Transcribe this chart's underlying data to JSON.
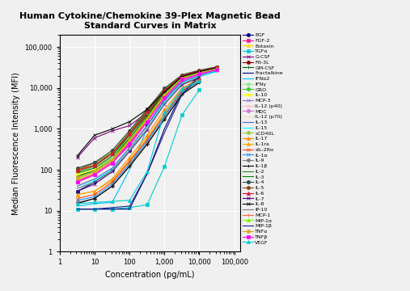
{
  "title": "Human Cytokine/Chemokine 39-Plex Magnetic Bead\nStandard Curves in Matrix",
  "xlabel": "Concentration (pg/mL)",
  "ylabel": "Median Fluorescence Intensity (MFI)",
  "x_conc": [
    3.2,
    10,
    32,
    100,
    320,
    1000,
    3200,
    10000,
    32000
  ],
  "series": [
    {
      "name": "EGF",
      "color": "#00008B",
      "marker": "o",
      "y": [
        30,
        50,
        100,
        300,
        1200,
        5000,
        15000,
        22000,
        28000
      ]
    },
    {
      "name": "FGF-2",
      "color": "#FF1493",
      "marker": "s",
      "y": [
        50,
        80,
        150,
        400,
        1500,
        6000,
        18000,
        25000,
        30000
      ]
    },
    {
      "name": "Eotaxin",
      "color": "#FFD700",
      "marker": "^",
      "y": [
        80,
        100,
        200,
        600,
        2000,
        8000,
        20000,
        26000,
        32000
      ]
    },
    {
      "name": "TGFα",
      "color": "#00CED1",
      "marker": "s",
      "y": [
        11,
        11,
        11,
        12,
        14,
        120,
        2200,
        9000,
        null
      ]
    },
    {
      "name": "G-CSF",
      "color": "#800080",
      "marker": "x",
      "y": [
        200,
        600,
        900,
        1200,
        2500,
        7000,
        18000,
        24000,
        30000
      ]
    },
    {
      "name": "Flt-3L",
      "color": "#8B0000",
      "marker": "o",
      "y": [
        100,
        150,
        250,
        700,
        2200,
        7500,
        19000,
        25000,
        31000
      ]
    },
    {
      "name": "GM-CSF",
      "color": "#006400",
      "marker": "+",
      "y": [
        70,
        100,
        200,
        600,
        2000,
        7000,
        18000,
        24000,
        30000
      ]
    },
    {
      "name": "Fractalkine",
      "color": "#000080",
      "marker": "none",
      "y": [
        11,
        11,
        11,
        11,
        80,
        1000,
        8000,
        20000,
        null
      ]
    },
    {
      "name": "IFNα2",
      "color": "#00BFFF",
      "marker": "none",
      "y": [
        13,
        15,
        16,
        100,
        1000,
        5000,
        15000,
        22000,
        null
      ]
    },
    {
      "name": "IFNγ",
      "color": "#90EE90",
      "marker": "o",
      "y": [
        80,
        100,
        200,
        700,
        2500,
        8000,
        19000,
        25000,
        31000
      ]
    },
    {
      "name": "GRO",
      "color": "#32CD32",
      "marker": "o",
      "y": [
        90,
        120,
        250,
        800,
        2800,
        9000,
        20000,
        26000,
        32000
      ]
    },
    {
      "name": "IL-10",
      "color": "#FFFF00",
      "marker": "o",
      "y": [
        75,
        100,
        180,
        550,
        1800,
        7000,
        18000,
        24000,
        30000
      ]
    },
    {
      "name": "MCP-3",
      "color": "#9370DB",
      "marker": "x",
      "y": [
        65,
        90,
        170,
        500,
        1700,
        6500,
        17000,
        23000,
        29000
      ]
    },
    {
      "name": "IL-12 (p40)",
      "color": "#FFB6C1",
      "marker": "x",
      "y": [
        60,
        85,
        160,
        480,
        1600,
        6000,
        16000,
        22000,
        28000
      ]
    },
    {
      "name": "MDC",
      "color": "#DA70D6",
      "marker": "o",
      "y": [
        55,
        80,
        150,
        450,
        1500,
        5500,
        15000,
        21000,
        27000
      ]
    },
    {
      "name": "IL-12 (p70)",
      "color": "#F5DEB3",
      "marker": "+",
      "y": [
        45,
        60,
        110,
        330,
        1100,
        4500,
        13000,
        19000,
        26000
      ]
    },
    {
      "name": "IL-13",
      "color": "#4169E1",
      "marker": "none",
      "y": [
        40,
        60,
        110,
        350,
        1200,
        5000,
        14000,
        20000,
        26000
      ]
    },
    {
      "name": "IL-15",
      "color": "#00FFFF",
      "marker": "none",
      "y": [
        35,
        55,
        100,
        300,
        1000,
        4500,
        13000,
        19000,
        25000
      ]
    },
    {
      "name": "sCD40L",
      "color": "#9ACD32",
      "marker": "o",
      "y": [
        100,
        140,
        280,
        900,
        3000,
        9500,
        21000,
        27000,
        33000
      ]
    },
    {
      "name": "IL-17",
      "color": "#FF8C00",
      "marker": "^",
      "y": [
        25,
        30,
        60,
        200,
        700,
        3000,
        10000,
        17000,
        null
      ]
    },
    {
      "name": "IL-1ra",
      "color": "#FFA500",
      "marker": "^",
      "y": [
        25,
        30,
        55,
        170,
        600,
        2500,
        9000,
        16000,
        null
      ]
    },
    {
      "name": "sIL-2Rα",
      "color": "#FF4500",
      "marker": "x",
      "y": [
        20,
        25,
        50,
        160,
        550,
        2200,
        8500,
        15500,
        null
      ]
    },
    {
      "name": "IL-1α",
      "color": "#1E90FF",
      "marker": "x",
      "y": [
        18,
        22,
        45,
        140,
        500,
        2000,
        8000,
        15000,
        null
      ]
    },
    {
      "name": "IL-9",
      "color": "#808080",
      "marker": "o",
      "y": [
        16,
        20,
        40,
        130,
        450,
        1800,
        7500,
        14000,
        null
      ]
    },
    {
      "name": "IL-1β",
      "color": "#000000",
      "marker": "+",
      "y": [
        15,
        20,
        40,
        120,
        420,
        1700,
        7000,
        13500,
        null
      ]
    },
    {
      "name": "IL-2",
      "color": "#228B22",
      "marker": "none",
      "y": [
        70,
        95,
        180,
        580,
        2000,
        7200,
        18000,
        24000,
        30000
      ]
    },
    {
      "name": "IL-3",
      "color": "#008000",
      "marker": "none",
      "y": [
        85,
        110,
        220,
        700,
        2400,
        8200,
        20000,
        26000,
        32000
      ]
    },
    {
      "name": "IL-4",
      "color": "#2F4F4F",
      "marker": "o",
      "y": [
        110,
        150,
        300,
        900,
        3000,
        9800,
        21000,
        27000,
        33000
      ]
    },
    {
      "name": "IL-5",
      "color": "#8B4513",
      "marker": "o",
      "y": [
        100,
        130,
        260,
        800,
        2700,
        8800,
        20000,
        26000,
        32000
      ]
    },
    {
      "name": "IL-6",
      "color": "#DC143C",
      "marker": "^",
      "y": [
        95,
        125,
        250,
        750,
        2600,
        8500,
        20000,
        26000,
        32000
      ]
    },
    {
      "name": "IL-7",
      "color": "#4B0082",
      "marker": "x",
      "y": [
        30,
        45,
        90,
        280,
        950,
        4000,
        12000,
        18000,
        null
      ]
    },
    {
      "name": "IL-8",
      "color": "#000000",
      "marker": "x",
      "y": [
        220,
        700,
        1000,
        1500,
        3000,
        8000,
        19000,
        25000,
        31000
      ]
    },
    {
      "name": "IP-10",
      "color": "#808080",
      "marker": "none",
      "y": [
        35,
        50,
        95,
        290,
        980,
        4100,
        12500,
        18500,
        null
      ]
    },
    {
      "name": "MCP-1",
      "color": "#FF6347",
      "marker": "+",
      "y": [
        55,
        80,
        160,
        480,
        1600,
        6200,
        16500,
        22500,
        28500
      ]
    },
    {
      "name": "MIP-1α",
      "color": "#7CFC00",
      "marker": "^",
      "y": [
        60,
        90,
        180,
        540,
        1800,
        6800,
        17500,
        23500,
        29500
      ]
    },
    {
      "name": "MIP-1β",
      "color": "#1C1C8C",
      "marker": "none",
      "y": [
        11,
        11,
        12,
        13,
        80,
        800,
        7000,
        19000,
        null
      ]
    },
    {
      "name": "TNFα",
      "color": "#DAA520",
      "marker": "o",
      "y": [
        65,
        90,
        175,
        520,
        1720,
        6500,
        17000,
        23000,
        29000
      ]
    },
    {
      "name": "TNFβ",
      "color": "#FF00FF",
      "marker": "s",
      "y": [
        50,
        75,
        145,
        440,
        1450,
        5800,
        16000,
        22000,
        28000
      ]
    },
    {
      "name": "VEGF",
      "color": "#00CED1",
      "marker": "^",
      "y": [
        15,
        16,
        17,
        18,
        90,
        2500,
        9500,
        15000,
        null
      ]
    }
  ],
  "xlim": [
    1.5,
    150000
  ],
  "ylim": [
    1,
    200000
  ],
  "bg_color": "#f0f0f0",
  "grid_color": "#ffffff"
}
